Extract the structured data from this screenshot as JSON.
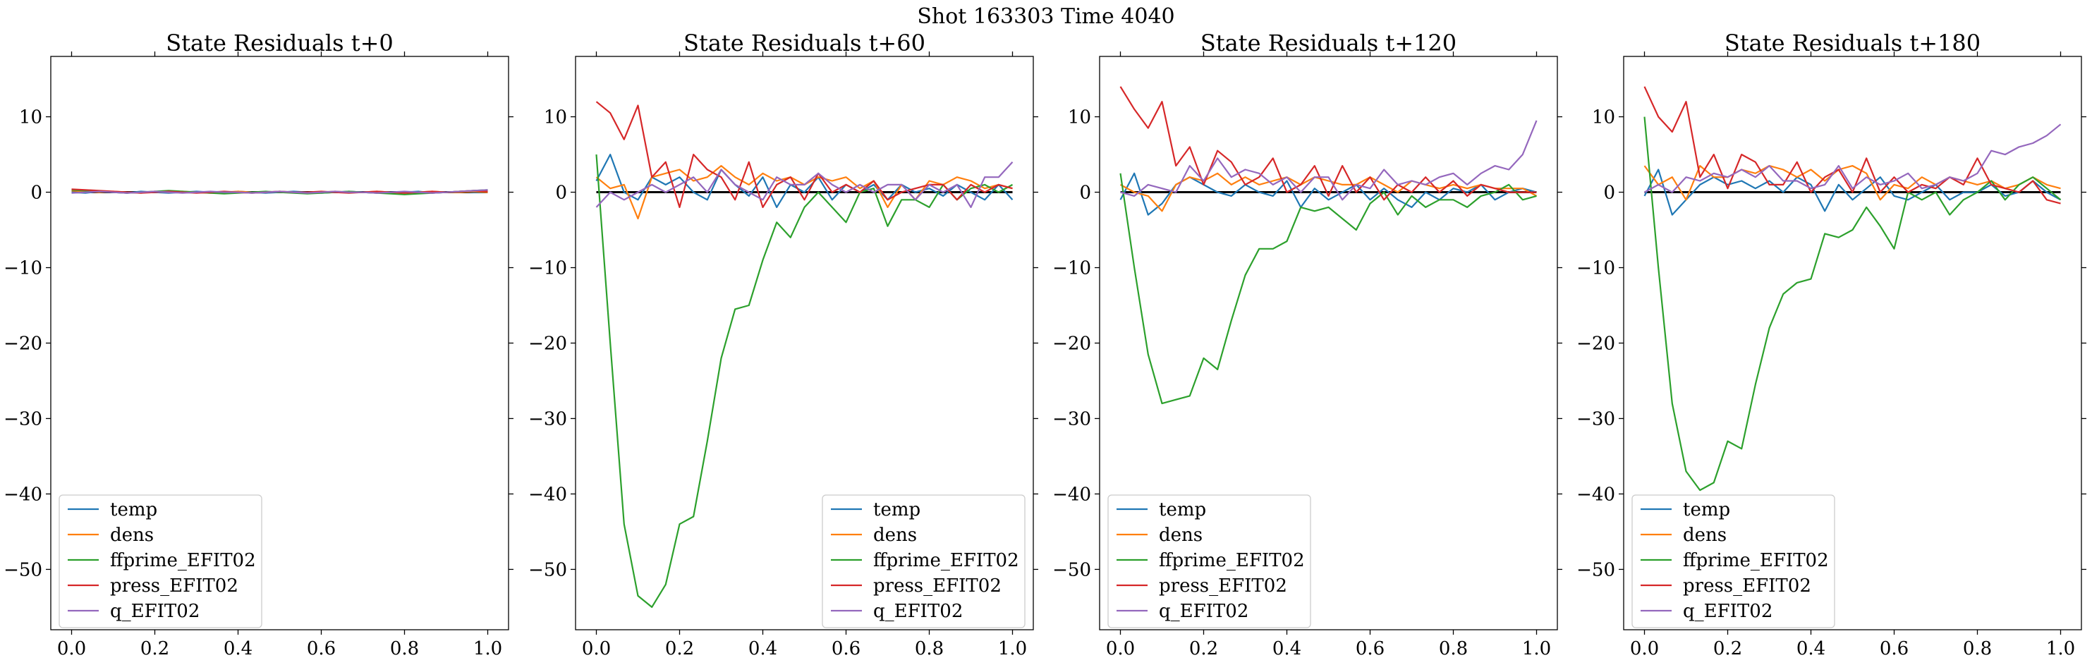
{
  "figure": {
    "suptitle": "Shot 163303   Time 4040"
  },
  "chart_data": [
    {
      "type": "line",
      "title": "State Residuals t+0",
      "xlabel": "",
      "ylabel": "",
      "xlim": [
        -0.05,
        1.05
      ],
      "ylim": [
        -58,
        18
      ],
      "xticks": [
        0.0,
        0.2,
        0.4,
        0.6,
        0.8,
        1.0
      ],
      "xticklabels": [
        "0.0",
        "0.2",
        "0.4",
        "0.6",
        "0.8",
        "1.0"
      ],
      "yticks": [
        10,
        0,
        -10,
        -20,
        -30,
        -40,
        -50
      ],
      "yticklabels": [
        "10",
        "0",
        "−10",
        "−20",
        "−30",
        "−40",
        "−50"
      ],
      "grid": false,
      "legend": "lower-left",
      "zero_line": true,
      "series": [
        {
          "name": "temp",
          "color": "#1f77b4",
          "values": [
            0.0,
            -0.1,
            0.1,
            0.0,
            -0.1,
            0.1,
            0.0,
            -0.1,
            0.0,
            0.1,
            0.0,
            -0.1,
            0.1,
            0.0,
            -0.1,
            0.0,
            0.1,
            0.0,
            -0.1,
            0.0,
            0.1,
            0.0,
            -0.1,
            0.0,
            0.0,
            0.1,
            -0.1,
            0.0,
            0.1,
            0.0,
            0.0
          ]
        },
        {
          "name": "dens",
          "color": "#ff7f0e",
          "values": [
            0.2,
            0.1,
            0.0,
            0.1,
            0.0,
            -0.1,
            0.1,
            0.0,
            0.1,
            0.0,
            -0.1,
            0.0,
            0.1,
            0.0,
            0.0,
            0.1,
            0.0,
            -0.1,
            0.0,
            0.1,
            0.0,
            0.0,
            0.1,
            0.0,
            -0.1,
            0.0,
            0.1,
            0.0,
            0.0,
            0.1,
            0.0
          ]
        },
        {
          "name": "ffprime_EFIT02",
          "color": "#2ca02c",
          "values": [
            0.3,
            0.2,
            0.1,
            0.0,
            -0.1,
            0.0,
            0.1,
            0.2,
            0.1,
            0.0,
            -0.1,
            -0.2,
            -0.1,
            0.0,
            0.1,
            0.0,
            -0.1,
            -0.2,
            -0.1,
            0.0,
            0.1,
            0.0,
            -0.1,
            -0.2,
            -0.3,
            -0.2,
            -0.1,
            0.0,
            0.1,
            0.2,
            0.3
          ]
        },
        {
          "name": "press_EFIT02",
          "color": "#d62728",
          "values": [
            0.4,
            0.3,
            0.2,
            0.1,
            0.0,
            -0.1,
            0.0,
            0.1,
            0.0,
            -0.1,
            0.0,
            0.1,
            0.0,
            -0.1,
            0.0,
            0.1,
            0.0,
            0.0,
            0.1,
            0.0,
            -0.1,
            0.0,
            0.1,
            0.0,
            -0.1,
            0.0,
            0.1,
            0.0,
            0.1,
            0.2,
            0.1
          ]
        },
        {
          "name": "q_EFIT02",
          "color": "#9467bd",
          "values": [
            -0.1,
            0.0,
            0.1,
            0.0,
            -0.1,
            0.0,
            0.1,
            0.0,
            -0.1,
            0.0,
            0.1,
            0.0,
            0.0,
            -0.1,
            0.0,
            0.1,
            0.0,
            -0.1,
            0.0,
            0.1,
            0.0,
            0.0,
            -0.1,
            0.0,
            0.1,
            0.0,
            -0.1,
            0.0,
            0.1,
            0.2,
            0.3
          ]
        }
      ]
    },
    {
      "type": "line",
      "title": "State Residuals t+60",
      "xlabel": "",
      "ylabel": "",
      "xlim": [
        -0.05,
        1.05
      ],
      "ylim": [
        -58,
        18
      ],
      "xticks": [
        0.0,
        0.2,
        0.4,
        0.6,
        0.8,
        1.0
      ],
      "xticklabels": [
        "0.0",
        "0.2",
        "0.4",
        "0.6",
        "0.8",
        "1.0"
      ],
      "yticks": [
        10,
        0,
        -10,
        -20,
        -30,
        -40,
        -50
      ],
      "yticklabels": [
        "10",
        "0",
        "−10",
        "−20",
        "−30",
        "−40",
        "−50"
      ],
      "grid": false,
      "legend": "lower-right",
      "zero_line": true,
      "series": [
        {
          "name": "temp",
          "color": "#1f77b4",
          "values": [
            1.5,
            5.0,
            0.0,
            -1.0,
            2.0,
            1.0,
            2.0,
            0.0,
            -1.0,
            3.0,
            1.0,
            -0.5,
            2.0,
            -2.0,
            1.0,
            0.0,
            2.0,
            -1.0,
            1.0,
            0.0,
            1.0,
            -1.0,
            1.0,
            0.0,
            0.5,
            -0.5,
            1.0,
            0.0,
            -1.0,
            1.0,
            -1.0
          ]
        },
        {
          "name": "dens",
          "color": "#ff7f0e",
          "values": [
            2.0,
            0.5,
            1.0,
            -3.5,
            2.0,
            2.5,
            3.0,
            1.5,
            2.0,
            3.5,
            2.0,
            1.0,
            2.5,
            1.5,
            2.0,
            1.0,
            2.0,
            1.5,
            2.0,
            0.5,
            1.5,
            -2.0,
            1.0,
            -1.0,
            1.5,
            1.0,
            2.0,
            1.5,
            0.5,
            1.0,
            0.5
          ]
        },
        {
          "name": "ffprime_EFIT02",
          "color": "#2ca02c",
          "values": [
            5.0,
            -20.0,
            -44.0,
            -53.5,
            -55.0,
            -52.0,
            -44.0,
            -43.0,
            -33.0,
            -22.0,
            -15.5,
            -15.0,
            -9.0,
            -4.0,
            -6.0,
            -2.0,
            0.0,
            -2.0,
            -4.0,
            0.0,
            0.5,
            -4.5,
            -1.0,
            -1.0,
            -2.0,
            1.0,
            -1.0,
            0.5,
            1.0,
            0.0,
            1.0
          ]
        },
        {
          "name": "press_EFIT02",
          "color": "#d62728",
          "values": [
            12.0,
            10.5,
            7.0,
            11.5,
            2.0,
            4.0,
            -2.0,
            5.0,
            3.0,
            2.0,
            -1.0,
            4.0,
            -2.0,
            1.0,
            2.0,
            -1.0,
            2.5,
            0.0,
            1.0,
            0.0,
            1.5,
            -1.0,
            0.0,
            0.5,
            1.0,
            1.0,
            -1.0,
            1.0,
            0.0,
            1.0,
            0.5
          ]
        },
        {
          "name": "q_EFIT02",
          "color": "#9467bd",
          "values": [
            -2.0,
            0.0,
            -1.0,
            0.0,
            1.0,
            0.0,
            1.0,
            2.0,
            0.0,
            3.0,
            1.0,
            0.0,
            -1.0,
            2.0,
            1.0,
            1.0,
            2.5,
            1.0,
            0.0,
            1.0,
            0.0,
            1.0,
            1.0,
            -1.0,
            1.0,
            0.0,
            1.0,
            -2.0,
            2.0,
            2.0,
            4.0
          ]
        }
      ]
    },
    {
      "type": "line",
      "title": "State Residuals t+120",
      "xlabel": "",
      "ylabel": "",
      "xlim": [
        -0.05,
        1.05
      ],
      "ylim": [
        -58,
        18
      ],
      "xticks": [
        0.0,
        0.2,
        0.4,
        0.6,
        0.8,
        1.0
      ],
      "xticklabels": [
        "0.0",
        "0.2",
        "0.4",
        "0.6",
        "0.8",
        "1.0"
      ],
      "yticks": [
        10,
        0,
        -10,
        -20,
        -30,
        -40,
        -50
      ],
      "yticklabels": [
        "10",
        "0",
        "−10",
        "−20",
        "−30",
        "−40",
        "−50"
      ],
      "grid": false,
      "legend": "lower-left",
      "zero_line": true,
      "series": [
        {
          "name": "temp",
          "color": "#1f77b4",
          "values": [
            -1.0,
            2.5,
            -3.0,
            -1.5,
            1.0,
            2.0,
            1.0,
            0.0,
            -0.5,
            1.0,
            0.0,
            -0.5,
            1.5,
            -2.0,
            0.5,
            -1.0,
            0.0,
            1.0,
            -1.0,
            0.5,
            -1.0,
            -2.0,
            0.0,
            -1.0,
            0.5,
            0.0,
            1.0,
            -1.0,
            0.0,
            0.5,
            0.0
          ]
        },
        {
          "name": "dens",
          "color": "#ff7f0e",
          "values": [
            1.0,
            0.0,
            -0.5,
            -2.5,
            1.0,
            2.0,
            1.5,
            2.5,
            1.0,
            2.0,
            1.0,
            1.5,
            2.0,
            1.0,
            2.0,
            1.5,
            1.0,
            1.0,
            2.0,
            1.0,
            0.0,
            1.5,
            1.0,
            0.5,
            1.0,
            0.5,
            1.0,
            0.5,
            0.5,
            0.5,
            -0.5
          ]
        },
        {
          "name": "ffprime_EFIT02",
          "color": "#2ca02c",
          "values": [
            2.5,
            -10.0,
            -21.5,
            -28.0,
            -27.5,
            -27.0,
            -22.0,
            -23.5,
            -17.0,
            -11.0,
            -7.5,
            -7.5,
            -6.5,
            -2.0,
            -2.5,
            -2.0,
            -3.5,
            -5.0,
            -1.5,
            0.0,
            -3.0,
            -0.5,
            -2.0,
            -1.0,
            -1.0,
            -2.0,
            -0.5,
            0.0,
            1.0,
            -1.0,
            -0.5
          ]
        },
        {
          "name": "press_EFIT02",
          "color": "#d62728",
          "values": [
            14.0,
            11.0,
            8.5,
            12.0,
            3.5,
            6.0,
            1.0,
            5.5,
            4.0,
            1.0,
            2.0,
            4.5,
            0.0,
            1.0,
            3.5,
            -0.5,
            3.5,
            0.0,
            2.0,
            -1.0,
            1.0,
            0.0,
            2.0,
            0.0,
            1.5,
            -0.5,
            1.0,
            0.5,
            0.0,
            0.0,
            0.0
          ]
        },
        {
          "name": "q_EFIT02",
          "color": "#9467bd",
          "values": [
            0.0,
            -0.5,
            1.0,
            0.5,
            0.0,
            3.5,
            1.5,
            4.5,
            2.0,
            3.0,
            2.5,
            1.0,
            2.0,
            0.0,
            2.0,
            2.0,
            -1.0,
            1.0,
            0.5,
            3.0,
            1.0,
            1.5,
            1.0,
            2.0,
            2.5,
            1.0,
            2.5,
            3.5,
            3.0,
            5.0,
            9.5
          ]
        }
      ]
    },
    {
      "type": "line",
      "title": "State Residuals t+180",
      "xlabel": "",
      "ylabel": "",
      "xlim": [
        -0.05,
        1.05
      ],
      "ylim": [
        -58,
        18
      ],
      "xticks": [
        0.0,
        0.2,
        0.4,
        0.6,
        0.8,
        1.0
      ],
      "xticklabels": [
        "0.0",
        "0.2",
        "0.4",
        "0.6",
        "0.8",
        "1.0"
      ],
      "yticks": [
        10,
        0,
        -10,
        -20,
        -30,
        -40,
        -50
      ],
      "yticklabels": [
        "10",
        "0",
        "−10",
        "−20",
        "−30",
        "−40",
        "−50"
      ],
      "grid": false,
      "legend": "lower-left",
      "zero_line": true,
      "series": [
        {
          "name": "temp",
          "color": "#1f77b4",
          "values": [
            -0.5,
            3.0,
            -3.0,
            -1.0,
            1.0,
            2.0,
            1.0,
            1.5,
            0.5,
            1.5,
            0.0,
            2.0,
            1.0,
            -2.5,
            1.0,
            -1.0,
            0.5,
            2.0,
            -0.5,
            -1.0,
            0.0,
            1.0,
            -1.0,
            0.0,
            0.0,
            1.0,
            -0.5,
            0.0,
            1.5,
            0.0,
            -1.0
          ]
        },
        {
          "name": "dens",
          "color": "#ff7f0e",
          "values": [
            3.5,
            1.0,
            2.0,
            -1.0,
            3.5,
            2.0,
            2.0,
            3.0,
            2.5,
            3.5,
            3.0,
            2.0,
            3.0,
            1.5,
            3.0,
            3.5,
            2.5,
            -1.0,
            1.0,
            0.5,
            2.0,
            1.0,
            2.0,
            1.5,
            1.0,
            1.5,
            0.5,
            1.0,
            2.0,
            1.0,
            0.5
          ]
        },
        {
          "name": "ffprime_EFIT02",
          "color": "#2ca02c",
          "values": [
            10.0,
            -10.0,
            -28.0,
            -37.0,
            -39.5,
            -38.5,
            -33.0,
            -34.0,
            -25.5,
            -18.0,
            -13.5,
            -12.0,
            -11.5,
            -5.5,
            -6.0,
            -5.0,
            -2.0,
            -4.5,
            -7.5,
            0.0,
            -1.0,
            0.0,
            -3.0,
            -1.0,
            0.0,
            1.5,
            -1.0,
            1.0,
            2.0,
            0.5,
            -1.0
          ]
        },
        {
          "name": "press_EFIT02",
          "color": "#d62728",
          "values": [
            14.0,
            10.0,
            8.0,
            12.0,
            2.0,
            5.0,
            0.5,
            5.0,
            4.0,
            1.0,
            1.0,
            4.0,
            0.0,
            2.0,
            3.0,
            0.0,
            4.5,
            0.0,
            2.0,
            0.0,
            1.0,
            0.5,
            2.0,
            1.0,
            4.5,
            1.0,
            0.5,
            0.0,
            1.5,
            -1.0,
            -1.5
          ]
        },
        {
          "name": "q_EFIT02",
          "color": "#9467bd",
          "values": [
            0.0,
            1.0,
            0.0,
            2.0,
            1.5,
            2.5,
            2.0,
            3.0,
            2.0,
            3.5,
            1.5,
            1.5,
            0.5,
            1.0,
            3.5,
            0.5,
            2.0,
            1.0,
            1.5,
            2.5,
            0.5,
            1.0,
            2.0,
            1.5,
            2.5,
            5.5,
            5.0,
            6.0,
            6.5,
            7.5,
            9.0
          ]
        }
      ]
    }
  ]
}
